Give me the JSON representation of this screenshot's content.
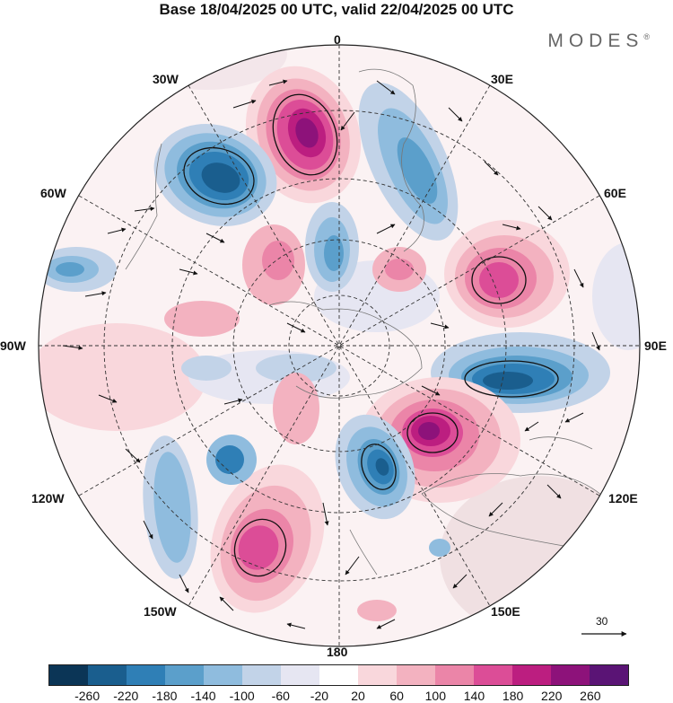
{
  "title": "Base 18/04/2025 00 UTC, valid 22/04/2025 00 UTC",
  "brand": {
    "name": "MODES",
    "mark": "®"
  },
  "longitude_labels": {
    "top": "0",
    "bottom": "180",
    "left": "90W",
    "right": "90E",
    "upper_left": "30W",
    "upper_right": "30E",
    "mid_left": "60W",
    "mid_right": "60E",
    "lower_mid_left": "120W",
    "lower_mid_right": "120E",
    "lower_left": "150W",
    "lower_right": "150E"
  },
  "wind_scale": {
    "value": "30",
    "icon": "arrow-right-icon"
  },
  "colorbar": {
    "colors": [
      "#0b3556",
      "#1a5e8e",
      "#2f7fb6",
      "#5b9fcb",
      "#8fbcde",
      "#c2d3e8",
      "#e6e6f2",
      "#ffffff",
      "#f9d7dc",
      "#f3b2c0",
      "#eb85a8",
      "#dc4d97",
      "#bc1e80",
      "#8d127a",
      "#5a1475"
    ],
    "tick_labels": [
      "-260",
      "-220",
      "-180",
      "-140",
      "-100",
      "-60",
      "-20",
      "20",
      "60",
      "100",
      "140",
      "180",
      "220",
      "260"
    ]
  },
  "map": {
    "projection": "polar-stereographic-south",
    "field": "geopotential-height-anomaly",
    "vectors": "wind-arrows",
    "anomaly_centers": [
      {
        "sign": "positive",
        "level": "strong",
        "sector": "0-30W"
      },
      {
        "sign": "negative",
        "level": "strong",
        "sector": "30W-60W"
      },
      {
        "sign": "negative",
        "level": "moderate",
        "sector": "30E"
      },
      {
        "sign": "positive",
        "level": "strong",
        "sector": "60E"
      },
      {
        "sign": "negative",
        "level": "strong",
        "sector": "90E"
      },
      {
        "sign": "positive",
        "level": "strong",
        "sector": "120E-150E"
      },
      {
        "sign": "negative",
        "level": "strong",
        "sector": "150E-180"
      },
      {
        "sign": "positive",
        "level": "moderate",
        "sector": "150W-180"
      },
      {
        "sign": "negative",
        "level": "moderate",
        "sector": "120W-150W"
      },
      {
        "sign": "negative",
        "level": "moderate",
        "sector": "60W-90W"
      }
    ]
  }
}
